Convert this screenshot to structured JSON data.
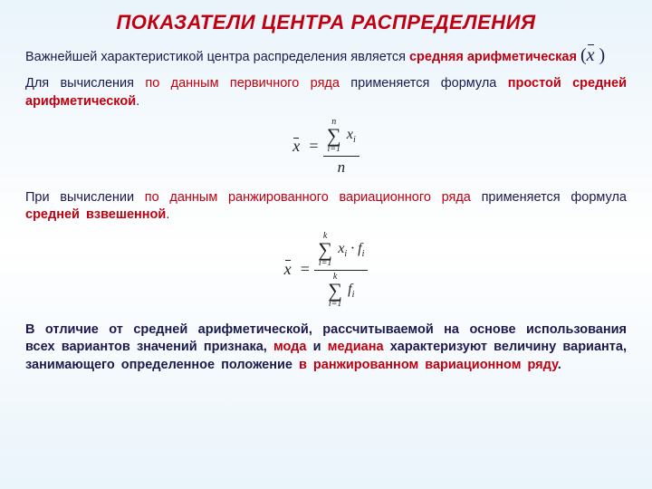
{
  "title": "ПОКАЗАТЕЛИ ЦЕНТРА РАСПРЕДЕЛЕНИЯ",
  "p1_a": "Важнейшей характеристикой центра распределения является ",
  "p1_b": "средняя арифметическая",
  "p2_a": "Для вычисления ",
  "p2_b": "по данным первичного ряда",
  "p2_c": " применяется формула ",
  "p2_d": "простой средней арифметической",
  "p2_e": ".",
  "p3_a": "При вычислении ",
  "p3_b": "по данным ранжированного вариационного ряда",
  "p3_c": " применяется формула ",
  "p3_d": "средней взвешенной",
  "p3_e": ".",
  "p4_a": "В отличие от средней арифметической, рассчитываемой на основе использования всех вариантов значений признака, ",
  "p4_b": "мода",
  "p4_c": " и ",
  "p4_d": "медиана",
  "p4_e": " характеризуют величину варианта, занимающего определенное положение ",
  "p4_f": "в ранжированном вариационном ряду",
  "p4_g": ".",
  "f1": {
    "upper": "n",
    "lower": "i=1",
    "var": "x",
    "sub": "i",
    "den": "n"
  },
  "f2": {
    "upper": "k",
    "lower": "i=1",
    "num_var": "x",
    "num_sub": "i",
    "num_f": "f",
    "num_fsub": "i",
    "den_f": "f",
    "den_fsub": "i"
  },
  "colors": {
    "heading": "#c00010",
    "body": "#1a1a4d",
    "bg_top": "#eaf4fb"
  }
}
